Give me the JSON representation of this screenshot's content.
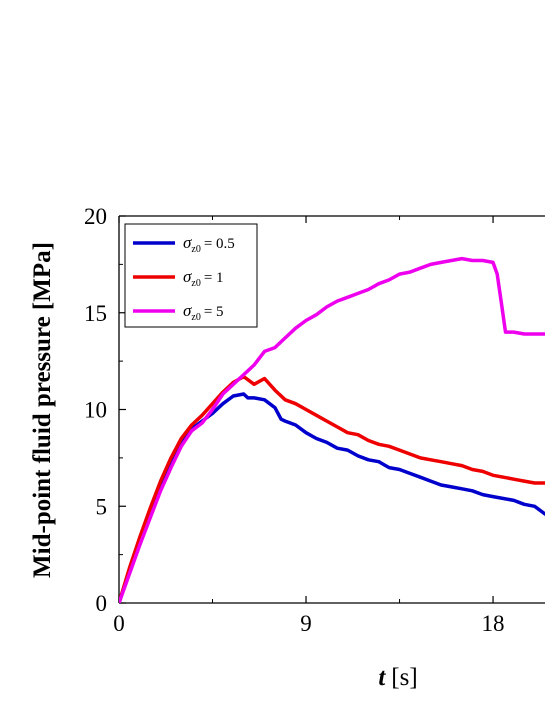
{
  "chart_data": {
    "type": "line",
    "xlabel": {
      "symbol": "t",
      "unit": "[s]"
    },
    "ylabel": "Mid-point fluid pressure [MPa]",
    "xlim": [
      0,
      20.5
    ],
    "ylim": [
      0,
      20
    ],
    "xticks": [
      0,
      9,
      18
    ],
    "yticks": [
      0,
      5,
      10,
      15,
      20
    ],
    "grid": false,
    "legend_position": "top-left",
    "series": [
      {
        "name": "σz0 = 0.5",
        "legend": {
          "symbol": "σ",
          "subscript": "z0",
          "value": "= 0.5"
        },
        "color": "#0000cc",
        "x": [
          0,
          0.5,
          1,
          1.5,
          2,
          2.5,
          3,
          3.5,
          4,
          4.5,
          5,
          5.5,
          6,
          6.2,
          6.5,
          7,
          7.5,
          7.8,
          8,
          8.5,
          9,
          9.5,
          10,
          10.5,
          11,
          11.5,
          12,
          12.5,
          13,
          13.5,
          14,
          14.5,
          15,
          15.5,
          16,
          16.5,
          17,
          17.5,
          18,
          18.5,
          19,
          19.5,
          20,
          20.5
        ],
        "y": [
          0,
          1.7,
          3.2,
          4.7,
          6.0,
          7.2,
          8.3,
          9.0,
          9.4,
          9.8,
          10.3,
          10.7,
          10.8,
          10.6,
          10.6,
          10.5,
          10.1,
          9.5,
          9.4,
          9.2,
          8.8,
          8.5,
          8.3,
          8.0,
          7.9,
          7.6,
          7.4,
          7.3,
          7.0,
          6.9,
          6.7,
          6.5,
          6.3,
          6.1,
          6.0,
          5.9,
          5.8,
          5.6,
          5.5,
          5.4,
          5.3,
          5.1,
          5.0,
          4.6
        ]
      },
      {
        "name": "σz0 = 1",
        "legend": {
          "symbol": "σ",
          "subscript": "z0",
          "value": "= 1"
        },
        "color": "#ee0000",
        "x": [
          0,
          0.5,
          1,
          1.5,
          2,
          2.5,
          3,
          3.5,
          4,
          4.5,
          5,
          5.5,
          6,
          6.5,
          7,
          7.5,
          8,
          8.5,
          9,
          9.5,
          10,
          10.5,
          11,
          11.5,
          12,
          12.5,
          13,
          13.5,
          14,
          14.5,
          15,
          15.5,
          16,
          16.5,
          17,
          17.5,
          18,
          18.5,
          19,
          19.5,
          20,
          20.5
        ],
        "y": [
          0,
          1.8,
          3.4,
          4.9,
          6.3,
          7.5,
          8.5,
          9.2,
          9.7,
          10.3,
          10.9,
          11.4,
          11.7,
          11.3,
          11.6,
          11.0,
          10.5,
          10.3,
          10.0,
          9.7,
          9.4,
          9.1,
          8.8,
          8.7,
          8.4,
          8.2,
          8.1,
          7.9,
          7.7,
          7.5,
          7.4,
          7.3,
          7.2,
          7.1,
          6.9,
          6.8,
          6.6,
          6.5,
          6.4,
          6.3,
          6.2,
          6.2
        ]
      },
      {
        "name": "σz0 = 5",
        "legend": {
          "symbol": "σ",
          "subscript": "z0",
          "value": "= 5"
        },
        "color": "#ee00ee",
        "x": [
          0,
          0.5,
          1,
          1.5,
          2,
          2.5,
          3,
          3.5,
          4,
          4.5,
          5,
          5.5,
          6,
          6.5,
          7,
          7.5,
          8,
          8.5,
          9,
          9.5,
          10,
          10.5,
          11,
          11.5,
          12,
          12.5,
          13,
          13.5,
          14,
          14.5,
          15,
          15.5,
          16,
          16.5,
          17,
          17.5,
          18,
          18.2,
          18.4,
          18.6,
          19,
          19.5,
          20,
          20.5
        ],
        "y": [
          0,
          1.5,
          3.0,
          4.4,
          5.8,
          7.0,
          8.1,
          8.9,
          9.3,
          10.0,
          10.8,
          11.3,
          11.8,
          12.3,
          13.0,
          13.2,
          13.7,
          14.2,
          14.6,
          14.9,
          15.3,
          15.6,
          15.8,
          16.0,
          16.2,
          16.5,
          16.7,
          17.0,
          17.1,
          17.3,
          17.5,
          17.6,
          17.7,
          17.8,
          17.7,
          17.7,
          17.6,
          17.0,
          15.5,
          14.0,
          14.0,
          13.9,
          13.9,
          13.9
        ]
      }
    ]
  }
}
